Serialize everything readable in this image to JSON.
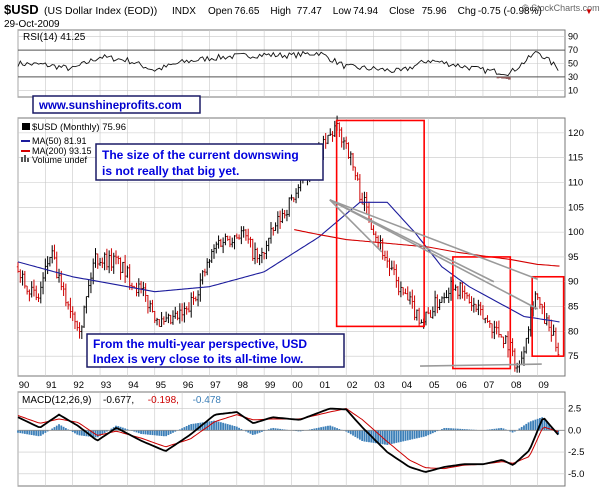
{
  "header": {
    "symbol": "$USD",
    "name": "(US Dollar Index (EOD))",
    "exchange": "INDX",
    "date": "29-Oct-2009",
    "copyright": "© StockCharts.com",
    "ohlc": [
      {
        "label": "Open",
        "value": "76.65"
      },
      {
        "label": "High",
        "value": "77.47"
      },
      {
        "label": "Low",
        "value": "74.94"
      },
      {
        "label": "Close",
        "value": "75.96"
      },
      {
        "label": "Chg",
        "value": "-0.75 (-0.98%)"
      }
    ],
    "chg_marker": "▼"
  },
  "website": "www.sunshineprofits.com",
  "annotations": {
    "downswing_line1": "The size of the current downswing",
    "downswing_line2": "is not really that big yet.",
    "multiyear_line1": "From the multi-year perspective, USD",
    "multiyear_line2": "Index is very close to its all-time low."
  },
  "legend": {
    "price": "$USD (Monthly) 75.96",
    "ma50": "MA(50) 81.91",
    "ma200": "MA(200) 93.15",
    "volume": "Volume undef"
  },
  "colors": {
    "grid": "#c8c8c8",
    "ma50": "#1c1c9c",
    "ma200": "#d40000",
    "bar_up": "#000000",
    "bar_down": "#cc0000",
    "box": "#ff0000",
    "trend": "#9a9a9a",
    "website": "#0000cc",
    "annotation": "#0000dd",
    "rsi_fill": "#8e5a5a",
    "hist": "#3c7fb8"
  },
  "chart_data": [
    {
      "type": "line",
      "title": "RSI(14) 41.25",
      "indicator": "RSI(14)",
      "last": 41.25,
      "yticks": [
        "90",
        "70",
        "50",
        "30",
        "10"
      ],
      "ylim": [
        0,
        100
      ],
      "x": [
        1990,
        1991,
        1992,
        1993,
        1994,
        1995,
        1996,
        1997,
        1998,
        1999,
        2000,
        2001,
        2002,
        2003,
        2004,
        2005,
        2006,
        2007,
        2008,
        2009,
        2009.8
      ],
      "values": [
        50,
        48,
        42,
        60,
        55,
        40,
        52,
        58,
        61,
        63,
        62,
        66,
        45,
        42,
        38,
        55,
        48,
        40,
        36,
        68,
        41
      ]
    },
    {
      "type": "bar",
      "title": "$USD (Monthly) 75.96",
      "yticks": [
        "120",
        "115",
        "110",
        "105",
        "100",
        "95",
        "90",
        "85",
        "80",
        "75"
      ],
      "ylim": [
        71,
        123
      ],
      "xticks": [
        "90",
        "91",
        "92",
        "93",
        "94",
        "95",
        "96",
        "97",
        "98",
        "99",
        "00",
        "01",
        "02",
        "03",
        "04",
        "05",
        "06",
        "07",
        "08",
        "09"
      ],
      "price": {
        "x": [
          1990,
          1990.7,
          1991.2,
          1991.6,
          1992.3,
          1992.8,
          1993.6,
          1994.5,
          1995.3,
          1996.2,
          1997.3,
          1998.2,
          1998.8,
          1999.5,
          2000.6,
          2001.6,
          2002.0,
          2002.5,
          2003.0,
          2003.5,
          2004.0,
          2004.8,
          2005.9,
          2006.8,
          2007.9,
          2008.3,
          2008.9,
          2009.2,
          2009.8
        ],
        "close": [
          93,
          86,
          96,
          88,
          81,
          95,
          94,
          88,
          81,
          84,
          98,
          100,
          94,
          102,
          112,
          121,
          118,
          108,
          101,
          94,
          88,
          82,
          90,
          84,
          78,
          72,
          88,
          83,
          75.96
        ]
      },
      "ma50": {
        "x": [
          1990,
          1992,
          1995,
          1997,
          1999,
          2001,
          2002.5,
          2003.5,
          2004.5,
          2005.5,
          2006.5,
          2007.5,
          2008.5,
          2009.8
        ],
        "values": [
          94,
          91,
          88,
          89,
          92,
          99,
          106,
          106,
          100,
          93,
          89,
          86,
          83,
          81.91
        ]
      },
      "ma200": {
        "x": [
          2000.1,
          2001,
          2002,
          2003,
          2004,
          2005,
          2006,
          2007,
          2008,
          2009,
          2009.8
        ],
        "values": [
          100.5,
          99.5,
          98.5,
          98,
          97.5,
          97,
          96,
          95.2,
          94.5,
          93.5,
          93.15
        ]
      },
      "annotation_boxes": [
        {
          "x_from": 2001.65,
          "x_to": 2004.85,
          "y_from": 81,
          "y_to": 122.5
        },
        {
          "x_from": 2005.9,
          "x_to": 2008.0,
          "y_from": 72.5,
          "y_to": 95
        },
        {
          "x_from": 2008.8,
          "x_to": 2009.95,
          "y_from": 75,
          "y_to": 91
        }
      ],
      "trend_lines": [
        {
          "from": [
            2001.4,
            106.5
          ],
          "to": [
            2003.3,
            96
          ]
        },
        {
          "from": [
            2001.4,
            106.5
          ],
          "to": [
            2007.4,
            90
          ]
        },
        {
          "from": [
            2001.4,
            106.5
          ],
          "to": [
            2009.0,
            90.5
          ]
        },
        {
          "from": [
            2001.4,
            106.5
          ],
          "to": [
            2009.0,
            84.5
          ]
        },
        {
          "from": [
            2004.7,
            73.0
          ],
          "to": [
            2009.15,
            73.4
          ]
        }
      ]
    },
    {
      "type": "line",
      "title": "MACD(12,26,9) -0.677, -0.198, -0.478",
      "series": [
        {
          "name": "MACD",
          "value": "-0.677",
          "x": [
            1990,
            1990.8,
            1991.5,
            1992.2,
            1992.9,
            1993.6,
            1994.5,
            1995.4,
            1996.3,
            1997.2,
            1998.0,
            1998.6,
            1999.3,
            2000.3,
            2001.4,
            2002.0,
            2002.6,
            2003.5,
            2004.3,
            2004.9,
            2005.6,
            2006.3,
            2007.0,
            2007.7,
            2008.1,
            2008.7,
            2009.2,
            2009.8
          ],
          "values": [
            1.5,
            0.3,
            1.8,
            0.5,
            -1.2,
            0.3,
            -1.2,
            -2.4,
            -0.5,
            1.8,
            2.1,
            0.8,
            1.5,
            1.2,
            2.5,
            2.4,
            0.3,
            -2.5,
            -4.2,
            -4.8,
            -4.2,
            -3.9,
            -3.9,
            -3.4,
            -4.0,
            -2.3,
            1.5,
            -0.677
          ]
        },
        {
          "name": "Signal",
          "value": "-0.198",
          "x": [
            1990,
            1990.8,
            1991.5,
            1992.2,
            1992.9,
            1993.6,
            1994.5,
            1995.4,
            1996.3,
            1997.2,
            1998.0,
            1998.6,
            1999.3,
            2000.3,
            2001.4,
            2002.0,
            2002.6,
            2003.5,
            2004.3,
            2004.9,
            2005.6,
            2006.3,
            2007.0,
            2007.7,
            2008.1,
            2008.7,
            2009.2,
            2009.8
          ],
          "values": [
            1.7,
            0.8,
            1.3,
            0.9,
            -0.6,
            -0.1,
            -0.9,
            -1.9,
            -1.0,
            1.0,
            1.8,
            1.2,
            1.3,
            1.3,
            2.1,
            2.5,
            1.2,
            -1.3,
            -3.4,
            -4.3,
            -4.4,
            -4.0,
            -3.9,
            -3.6,
            -3.8,
            -3.0,
            0.4,
            -0.198
          ]
        },
        {
          "name": "Histogram",
          "value": "-0.478"
        }
      ],
      "yticks": [
        "2.5",
        "0.0",
        "-2.5",
        "-5.0"
      ],
      "ylim": [
        -6.4,
        4.4
      ]
    }
  ]
}
